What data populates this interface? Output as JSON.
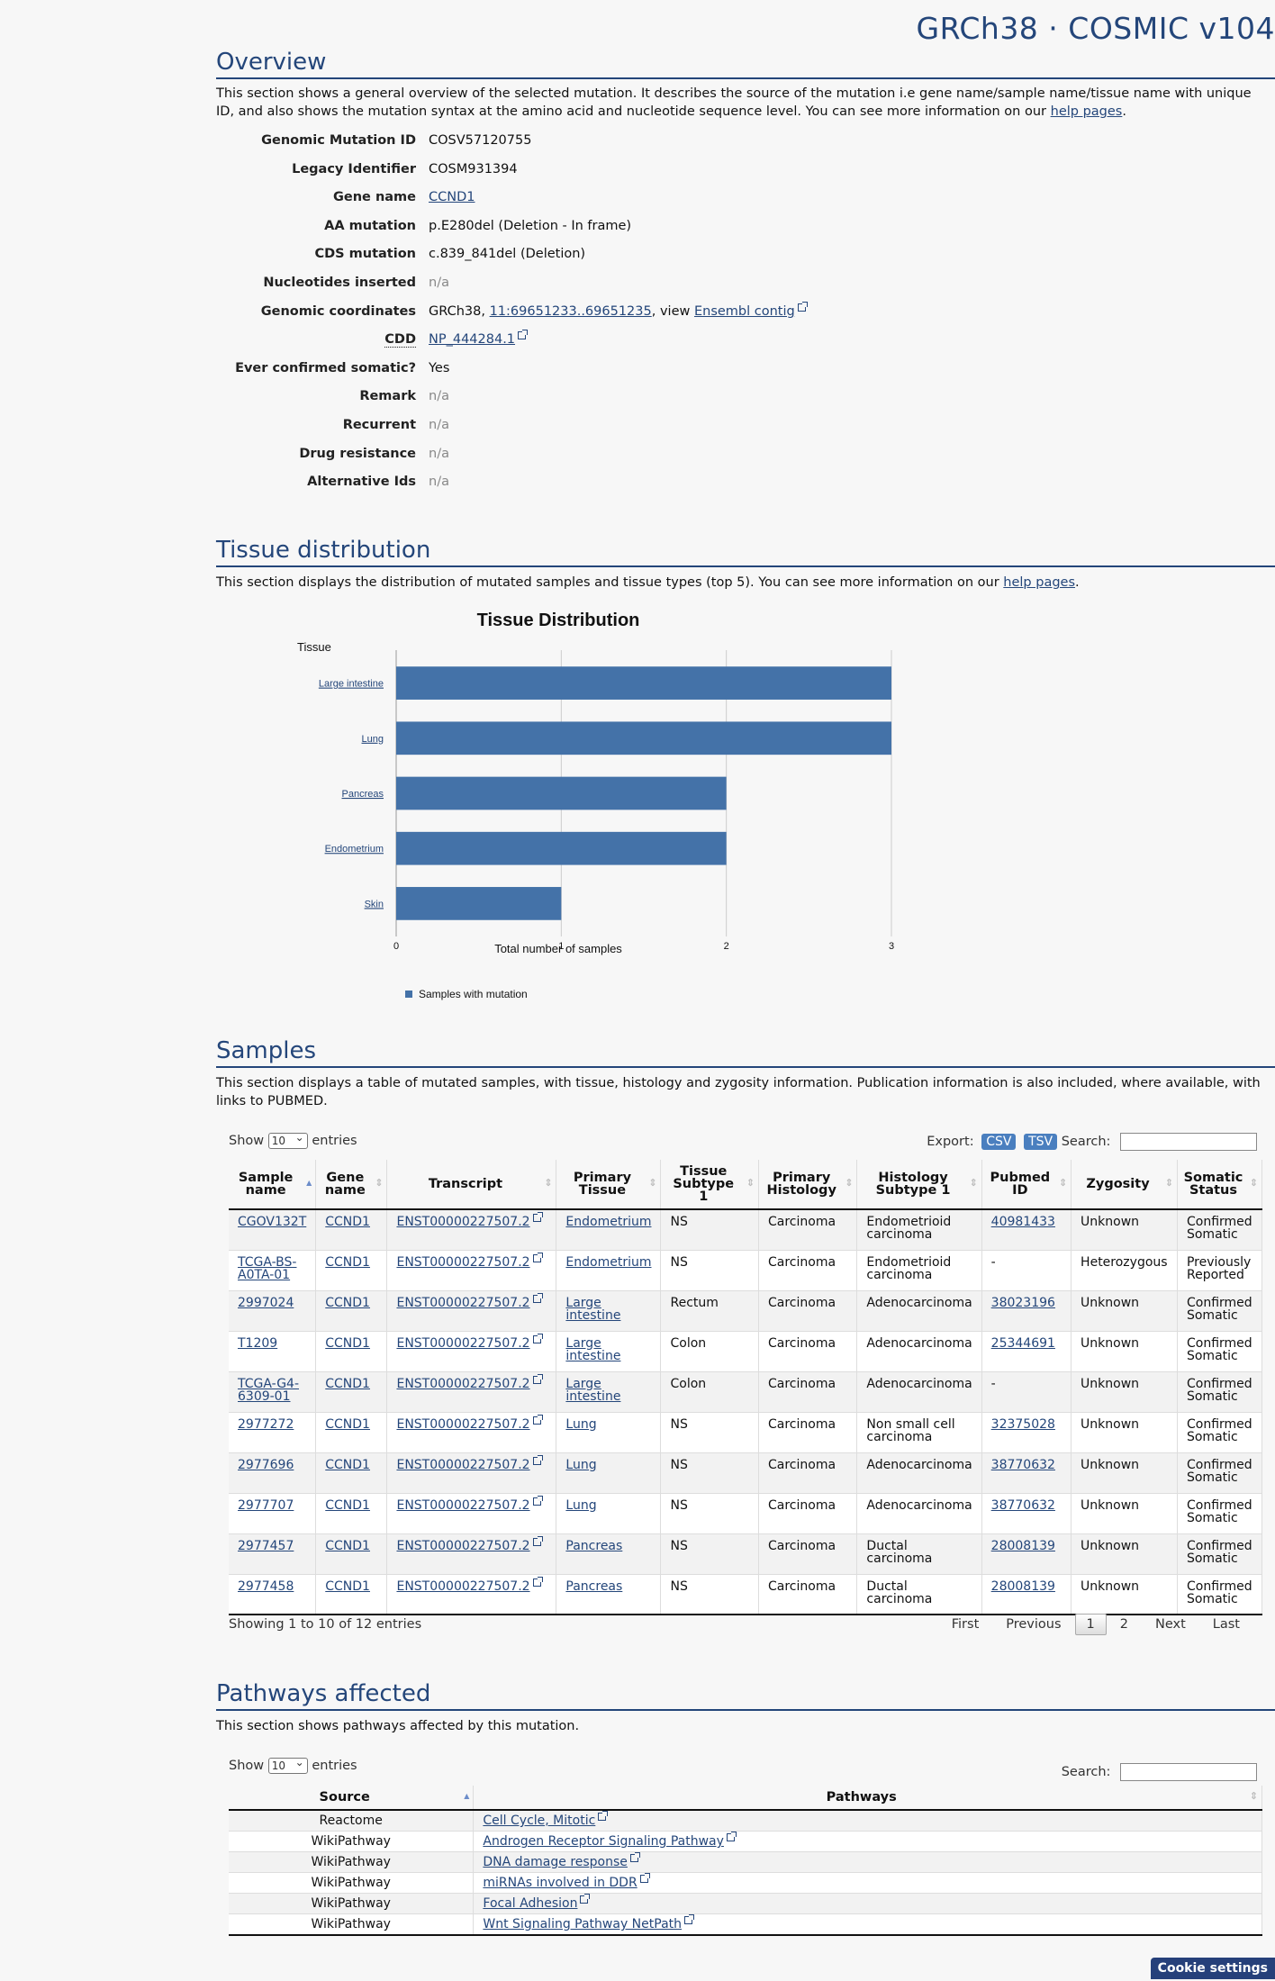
{
  "header": {
    "title": "GRCh38 · COSMIC v104"
  },
  "overview": {
    "title": "Overview",
    "desc_prefix": "This section shows a general overview of the selected mutation. It describes the source of the mutation i.e gene name/sample name/tissue name with unique ID, and also shows the mutation syntax at the amino acid and nucleotide sequence level. You can see more information on our ",
    "desc_link": "help pages",
    "rows": {
      "genomic_mutation_id": {
        "label": "Genomic Mutation ID",
        "value": "COSV57120755"
      },
      "legacy_identifier": {
        "label": "Legacy Identifier",
        "value": "COSM931394"
      },
      "gene_name": {
        "label": "Gene name",
        "value": "CCND1"
      },
      "aa_mutation": {
        "label": "AA mutation",
        "value": "p.E280del (Deletion - In frame)"
      },
      "cds_mutation": {
        "label": "CDS mutation",
        "value": "c.839_841del (Deletion)"
      },
      "nucleotides_inserted": {
        "label": "Nucleotides inserted",
        "value": "n/a"
      },
      "genomic_coordinates": {
        "label": "Genomic coordinates",
        "prefix": "GRCh38, ",
        "coords": "11:69651233..69651235",
        "mid": ", view ",
        "contig": "Ensembl contig"
      },
      "cdd": {
        "label": "CDD",
        "value": "NP_444284.1"
      },
      "ever_confirmed_somatic": {
        "label": "Ever confirmed somatic?",
        "value": "Yes"
      },
      "remark": {
        "label": "Remark",
        "value": "n/a"
      },
      "recurrent": {
        "label": "Recurrent",
        "value": "n/a"
      },
      "drug_resistance": {
        "label": "Drug resistance",
        "value": "n/a"
      },
      "alternative_ids": {
        "label": "Alternative Ids",
        "value": "n/a"
      }
    }
  },
  "tissue": {
    "title": "Tissue distribution",
    "desc_prefix": "This section displays the distribution of mutated samples and tissue types (top 5). You can see more information on our ",
    "desc_link": "help pages",
    "colors": {
      "bar": "#4472a8"
    }
  },
  "chart_data": {
    "type": "bar",
    "orientation": "horizontal",
    "title": "Tissue Distribution",
    "ylabel": "Tissue",
    "xlabel": "Total number of samples",
    "categories": [
      "Large intestine",
      "Lung",
      "Pancreas",
      "Endometrium",
      "Skin"
    ],
    "series": [
      {
        "name": "Samples with mutation",
        "values": [
          3,
          3,
          2,
          2,
          1
        ]
      }
    ],
    "xlim": [
      0,
      3
    ],
    "xticks": [
      "0",
      "1",
      "2",
      "3"
    ],
    "grid": true,
    "legend": "bottom-left"
  },
  "samples": {
    "title": "Samples",
    "desc": "This section displays a table of mutated samples, with tissue, histology and zygosity information. Publication information is also included, where available, with links to PUBMED.",
    "show_label": "Show",
    "entries_label": "entries",
    "page_size": "10",
    "export_label": "Export:",
    "csv_label": "CSV",
    "tsv_label": "TSV",
    "search_label": "Search:",
    "columns": [
      "Sample name",
      "Gene name",
      "Transcript",
      "Primary Tissue",
      "Tissue Subtype 1",
      "Primary Histology",
      "Histology Subtype 1",
      "Pubmed ID",
      "Zygosity",
      "Somatic Status"
    ],
    "rows": [
      [
        "CGOV132T",
        "CCND1",
        "ENST00000227507.2",
        "Endometrium",
        "NS",
        "Carcinoma",
        "Endometrioid carcinoma",
        "40981433",
        "Unknown",
        "Confirmed Somatic"
      ],
      [
        "TCGA-BS-A0TA-01",
        "CCND1",
        "ENST00000227507.2",
        "Endometrium",
        "NS",
        "Carcinoma",
        "Endometrioid carcinoma",
        "-",
        "Heterozygous",
        "Previously Reported"
      ],
      [
        "2997024",
        "CCND1",
        "ENST00000227507.2",
        "Large intestine",
        "Rectum",
        "Carcinoma",
        "Adenocarcinoma",
        "38023196",
        "Unknown",
        "Confirmed Somatic"
      ],
      [
        "T1209",
        "CCND1",
        "ENST00000227507.2",
        "Large intestine",
        "Colon",
        "Carcinoma",
        "Adenocarcinoma",
        "25344691",
        "Unknown",
        "Confirmed Somatic"
      ],
      [
        "TCGA-G4-6309-01",
        "CCND1",
        "ENST00000227507.2",
        "Large intestine",
        "Colon",
        "Carcinoma",
        "Adenocarcinoma",
        "-",
        "Unknown",
        "Confirmed Somatic"
      ],
      [
        "2977272",
        "CCND1",
        "ENST00000227507.2",
        "Lung",
        "NS",
        "Carcinoma",
        "Non small cell carcinoma",
        "32375028",
        "Unknown",
        "Confirmed Somatic"
      ],
      [
        "2977696",
        "CCND1",
        "ENST00000227507.2",
        "Lung",
        "NS",
        "Carcinoma",
        "Adenocarcinoma",
        "38770632",
        "Unknown",
        "Confirmed Somatic"
      ],
      [
        "2977707",
        "CCND1",
        "ENST00000227507.2",
        "Lung",
        "NS",
        "Carcinoma",
        "Adenocarcinoma",
        "38770632",
        "Unknown",
        "Confirmed Somatic"
      ],
      [
        "2977457",
        "CCND1",
        "ENST00000227507.2",
        "Pancreas",
        "NS",
        "Carcinoma",
        "Ductal carcinoma",
        "28008139",
        "Unknown",
        "Confirmed Somatic"
      ],
      [
        "2977458",
        "CCND1",
        "ENST00000227507.2",
        "Pancreas",
        "NS",
        "Carcinoma",
        "Ductal carcinoma",
        "28008139",
        "Unknown",
        "Confirmed Somatic"
      ]
    ],
    "info": "Showing 1 to 10 of 12 entries",
    "paging": {
      "first": "First",
      "previous": "Previous",
      "page1": "1",
      "page2": "2",
      "next": "Next",
      "last": "Last"
    }
  },
  "pathways": {
    "title": "Pathways affected",
    "desc": "This section shows pathways affected by this mutation.",
    "show_label": "Show",
    "entries_label": "entries",
    "page_size": "10",
    "search_label": "Search:",
    "columns": [
      "Source",
      "Pathways"
    ],
    "rows": [
      [
        "Reactome",
        "Cell Cycle, Mitotic"
      ],
      [
        "WikiPathway",
        "Androgen Receptor Signaling Pathway"
      ],
      [
        "WikiPathway",
        "DNA damage response"
      ],
      [
        "WikiPathway",
        "miRNAs involved in DDR"
      ],
      [
        "WikiPathway",
        "Focal Adhesion"
      ],
      [
        "WikiPathway",
        "Wnt Signaling Pathway NetPath"
      ]
    ]
  },
  "cookie": {
    "label": "Cookie settings"
  }
}
